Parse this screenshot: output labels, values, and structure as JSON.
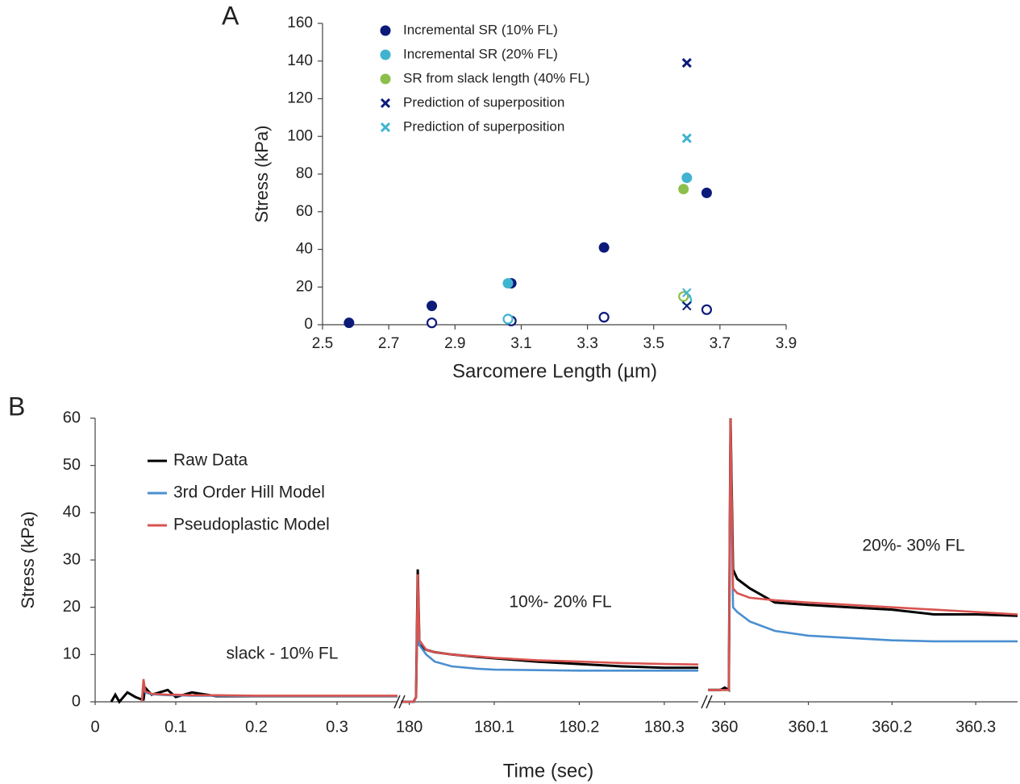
{
  "chart_data": [
    {
      "type": "scatter",
      "panel_label": "A",
      "x_label": "Sarcomere Length (µm)",
      "y_label": "Stress (kPa)",
      "xlim": [
        2.5,
        3.9
      ],
      "xticks": [
        2.5,
        2.7,
        2.9,
        3.1,
        3.3,
        3.5,
        3.7,
        3.9
      ],
      "ylim": [
        0,
        160
      ],
      "yticks": [
        0,
        20,
        40,
        60,
        80,
        100,
        120,
        140,
        160
      ],
      "series": [
        {
          "name": "Incremental SR (10% FL)",
          "color": "#0c1a7a",
          "marker": "circle",
          "x": [
            2.58,
            2.83,
            3.07,
            3.35,
            3.66
          ],
          "values": [
            1,
            10,
            22,
            41,
            70
          ],
          "open_values": [
            null,
            1,
            2,
            4,
            8
          ]
        },
        {
          "name": "Incremental SR (20% FL)",
          "color": "#3fb3d0",
          "marker": "circle",
          "x": [
            3.06,
            3.6
          ],
          "values": [
            22,
            78
          ],
          "open_values": [
            3,
            13
          ]
        },
        {
          "name": "SR from slack length (40% FL)",
          "color": "#8dbf4c",
          "marker": "circle",
          "x": [
            3.59
          ],
          "values": [
            72
          ],
          "open_values": [
            15
          ]
        },
        {
          "name": "Prediction of superposition",
          "color": "#0c1a7a",
          "marker": "x",
          "x": [
            3.6
          ],
          "values": [
            139
          ],
          "open_values": [
            10
          ]
        },
        {
          "name": "Prediction of superposition",
          "color": "#3fb3d0",
          "marker": "x",
          "x": [
            3.6
          ],
          "values": [
            99
          ],
          "open_values": [
            17
          ]
        }
      ]
    },
    {
      "type": "line",
      "panel_label": "B",
      "x_label": "Time (sec)",
      "y_label": "Stress (kPa)",
      "ylim": [
        0,
        60
      ],
      "yticks": [
        0,
        10,
        20,
        30,
        40,
        50,
        60
      ],
      "panels": [
        {
          "xlim": [
            0,
            0.375
          ],
          "xticks": [
            0,
            0.1,
            0.2,
            0.3
          ],
          "annotation": "slack - 10% FL",
          "x": [
            0.02,
            0.025,
            0.03,
            0.04,
            0.05,
            0.058,
            0.06,
            0.062,
            0.07,
            0.09,
            0.1,
            0.12,
            0.15,
            0.2,
            0.3,
            0.375
          ]
        },
        {
          "xlim": [
            179.99,
            180.34
          ],
          "xticks": [
            180,
            180.1,
            180.2,
            180.3
          ],
          "annotation": "10%- 20% FL",
          "x": [
            179.99,
            180.005,
            180.008,
            180.01,
            180.012,
            180.02,
            180.03,
            180.05,
            180.08,
            180.1,
            180.15,
            180.2,
            180.25,
            180.3,
            180.34
          ]
        },
        {
          "xlim": [
            359.98,
            360.35
          ],
          "xticks": [
            360,
            360.1,
            360.2,
            360.3
          ],
          "annotation": "20%- 30% FL",
          "x": [
            359.98,
            359.995,
            360.0,
            360.005,
            360.007,
            360.01,
            360.015,
            360.03,
            360.06,
            360.1,
            360.15,
            360.2,
            360.25,
            360.3,
            360.35
          ]
        }
      ],
      "series": [
        {
          "name": "Raw Data",
          "color": "#000000",
          "values": [
            [
              0,
              1.5,
              0,
              2,
              1,
              0.5,
              0.5,
              3,
              1.5,
              2.5,
              1,
              2,
              1.2,
              1.2,
              1.2,
              1.2
            ],
            [
              0,
              0,
              1,
              28,
              12,
              11,
              10.5,
              10,
              9.5,
              9.2,
              8.5,
              8,
              7.5,
              7.2,
              7.2
            ],
            [
              2.5,
              2.5,
              3,
              2.5,
              60,
              28,
              26,
              24,
              21,
              20.5,
              20,
              19.5,
              18.5,
              18.5,
              18.2
            ]
          ]
        },
        {
          "name": "3rd Order Hill Model",
          "color": "#4a8fd0",
          "values": [
            [
              null,
              null,
              null,
              null,
              null,
              0,
              4.5,
              2,
              1.6,
              1.4,
              1.4,
              1.3,
              1.3,
              1.2,
              1.2,
              1.2
            ],
            [
              0,
              0,
              1,
              20,
              12,
              10,
              8.5,
              7.5,
              7,
              6.8,
              6.7,
              6.6,
              6.6,
              6.6,
              6.6
            ],
            [
              2.5,
              2.5,
              2.5,
              2.5,
              59,
              20,
              19,
              17,
              15,
              14,
              13.5,
              13,
              12.8,
              12.8,
              12.8
            ]
          ]
        },
        {
          "name": "Pseudoplastic Model",
          "color": "#d9534f",
          "values": [
            [
              null,
              null,
              null,
              null,
              null,
              0,
              4.8,
              2.2,
              1.7,
              1.5,
              1.5,
              1.4,
              1.4,
              1.3,
              1.3,
              1.3
            ],
            [
              0,
              0,
              1,
              27,
              13,
              11,
              10.5,
              10,
              9.6,
              9.3,
              8.8,
              8.5,
              8.2,
              8,
              7.9
            ],
            [
              2.5,
              2.5,
              2.5,
              2.5,
              60,
              24,
              23,
              22,
              21.5,
              21,
              20.5,
              20,
              19.5,
              19,
              18.5
            ]
          ]
        }
      ]
    }
  ]
}
